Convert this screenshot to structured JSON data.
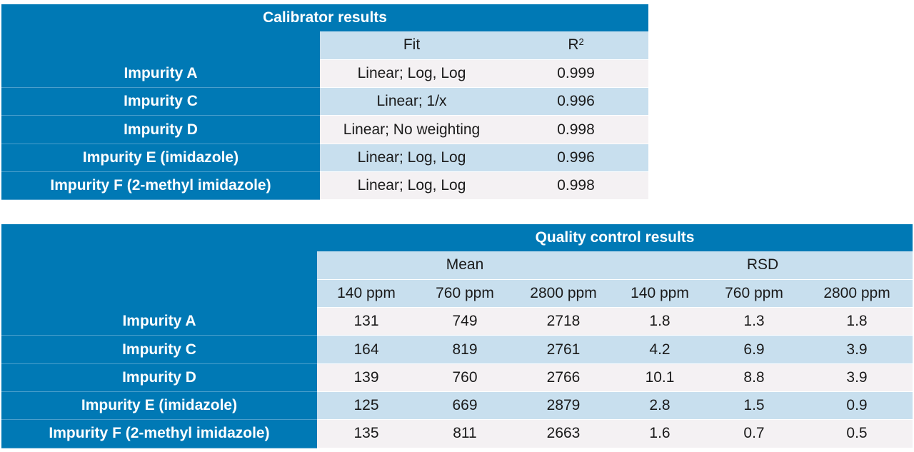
{
  "calibrator": {
    "title": "Calibrator results",
    "headers": {
      "fit": "Fit",
      "r2": "R",
      "r2_sup": "2"
    },
    "rows": [
      {
        "label": "Impurity A",
        "fit": "Linear; Log, Log",
        "r2": "0.999"
      },
      {
        "label": "Impurity C",
        "fit": "Linear; 1/x",
        "r2": "0.996"
      },
      {
        "label": "Impurity D",
        "fit": "Linear; No weighting",
        "r2": "0.998"
      },
      {
        "label": "Impurity E (imidazole)",
        "fit": "Linear; Log, Log",
        "r2": "0.996"
      },
      {
        "label": "Impurity F (2-methyl imidazole)",
        "fit": "Linear; Log, Log",
        "r2": "0.998"
      }
    ]
  },
  "qc": {
    "title": "Quality control results",
    "groups": {
      "mean": "Mean",
      "rsd": "RSD"
    },
    "levels": [
      "140 ppm",
      "760 ppm",
      "2800 ppm",
      "140 ppm",
      "760 ppm",
      "2800 ppm"
    ],
    "rows": [
      {
        "label": "Impurity A",
        "values": [
          "131",
          "749",
          "2718",
          "1.8",
          "1.3",
          "1.8"
        ]
      },
      {
        "label": "Impurity C",
        "values": [
          "164",
          "819",
          "2761",
          "4.2",
          "6.9",
          "3.9"
        ]
      },
      {
        "label": "Impurity D",
        "values": [
          "139",
          "760",
          "2766",
          "10.1",
          "8.8",
          "3.9"
        ]
      },
      {
        "label": "Impurity E (imidazole)",
        "values": [
          "125",
          "669",
          "2879",
          "2.8",
          "1.5",
          "0.9"
        ]
      },
      {
        "label": "Impurity F (2-methyl imidazole)",
        "values": [
          "135",
          "811",
          "2663",
          "1.6",
          "0.7",
          "0.5"
        ]
      }
    ]
  },
  "colors": {
    "header_blue": "#0079b5",
    "light_blue": "#c8dfee",
    "light_gray": "#f4f1f3"
  }
}
